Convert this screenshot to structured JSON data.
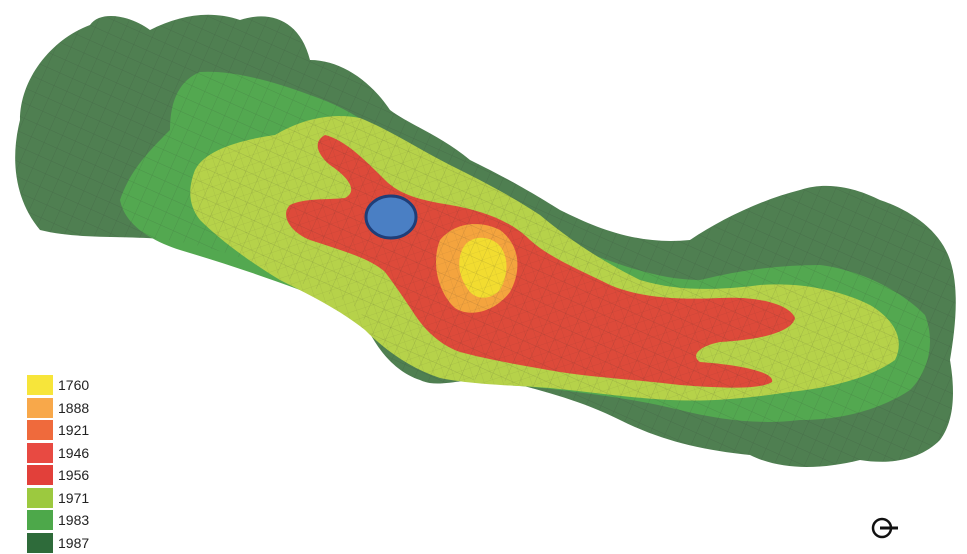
{
  "legend": {
    "items": [
      {
        "label": "1760",
        "color": "#f7e53a"
      },
      {
        "label": "1888",
        "color": "#f8a84a"
      },
      {
        "label": "1921",
        "color": "#ef6a3c"
      },
      {
        "label": "1946",
        "color": "#e84a42"
      },
      {
        "label": "1956",
        "color": "#e2403a"
      },
      {
        "label": "1971",
        "color": "#9cc93f"
      },
      {
        "label": "1983",
        "color": "#4da84a"
      },
      {
        "label": "1987",
        "color": "#2e6b3a"
      }
    ]
  },
  "map_colors": {
    "zone_1987": "#4f7f51",
    "zone_1983": "#53a850",
    "zone_1971": "#b6d24a",
    "zone_1956": "#dd4a3a",
    "zone_1888": "#f4a43e",
    "zone_1760": "#f2dc30",
    "marker_fill": "#4a7fc4",
    "marker_stroke": "#1f3e78"
  },
  "marker": {
    "icon": "location-marker-ellipse"
  },
  "compass": {
    "icon": "north-arrow-icon"
  }
}
